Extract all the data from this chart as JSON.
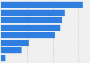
{
  "values": [
    79,
    62,
    59,
    57,
    52,
    27,
    20,
    4
  ],
  "bar_color": "#2f7fe0",
  "background_color": "#f0f0f0",
  "bar_height": 0.82,
  "xlim": [
    0,
    85
  ]
}
